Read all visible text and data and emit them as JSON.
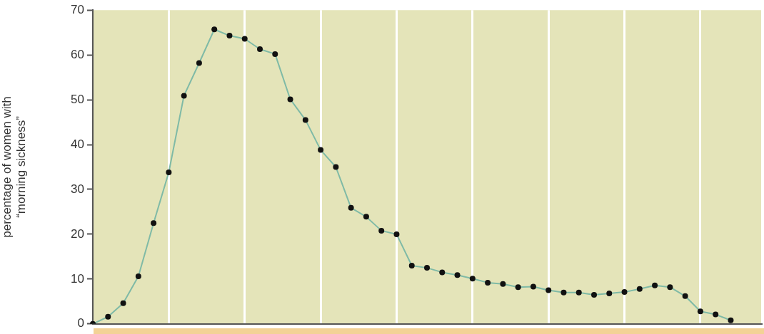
{
  "chart_data": {
    "type": "line",
    "ylabel": "percentage of women with\n“morning sickness”",
    "categories": [
      null,
      null,
      null,
      null,
      null,
      null,
      null,
      null,
      null,
      null,
      null,
      null,
      null,
      null,
      null,
      null,
      null,
      null,
      null,
      null,
      null,
      null,
      null,
      null,
      null,
      null,
      null,
      null,
      null,
      null,
      null,
      null,
      null,
      null,
      null,
      null,
      null,
      null,
      null,
      null,
      null,
      null,
      null,
      null,
      null
    ],
    "series": [
      {
        "color": "#7fbaa6",
        "values": [
          0,
          1.6,
          4.6,
          10.6,
          22.5,
          33.8,
          50.9,
          58.2,
          65.7,
          64.3,
          63.6,
          61.3,
          60.2,
          50.1,
          45.5,
          38.8,
          35.0,
          25.9,
          23.9,
          20.8,
          20.0,
          13.0,
          12.5,
          11.5,
          10.9,
          10.1,
          9.2,
          8.9,
          8.2,
          8.3,
          7.5,
          7.0,
          7.0,
          6.5,
          6.8,
          7.1,
          7.8,
          8.6,
          8.2,
          6.2,
          2.8,
          2.1,
          0.8,
          null,
          null
        ]
      }
    ],
    "ylim": [
      0,
      70
    ],
    "yticks": [
      0,
      10,
      20,
      30,
      40,
      50,
      60,
      70
    ],
    "tick_labels": "y",
    "grid": "x",
    "marker": "circle",
    "line_style": "solid"
  }
}
